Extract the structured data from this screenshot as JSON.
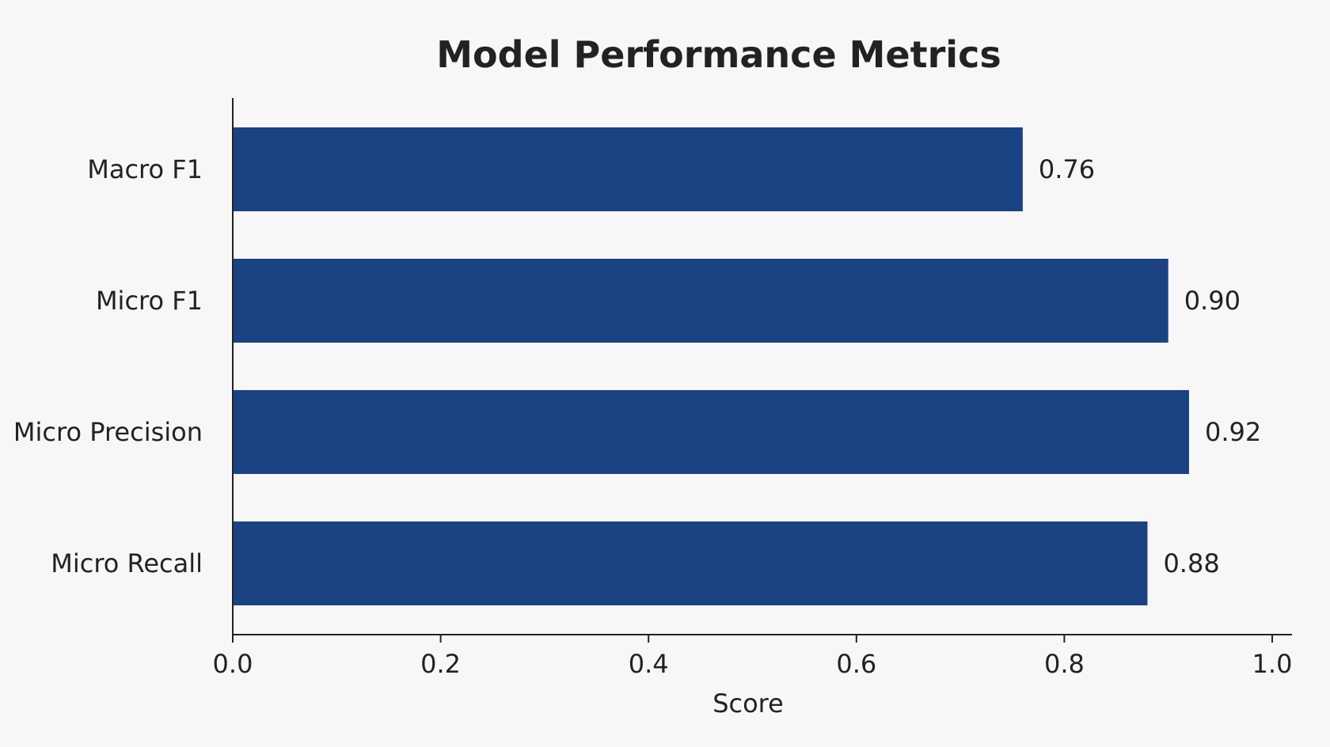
{
  "chart_data": {
    "type": "bar",
    "orientation": "horizontal",
    "title": "Model Performance Metrics",
    "xlabel": "Score",
    "ylabel": "",
    "categories": [
      "Macro F1",
      "Micro F1",
      "Micro Precision",
      "Micro Recall"
    ],
    "values": [
      0.76,
      0.9,
      0.92,
      0.88
    ],
    "value_labels": [
      "0.76",
      "0.90",
      "0.92",
      "0.88"
    ],
    "xlim": [
      0.0,
      1.0
    ],
    "xticks": [
      "0.0",
      "0.2",
      "0.4",
      "0.6",
      "0.8",
      "1.0"
    ],
    "grid": false,
    "legend": "none",
    "bar_color": "#1b4283"
  }
}
